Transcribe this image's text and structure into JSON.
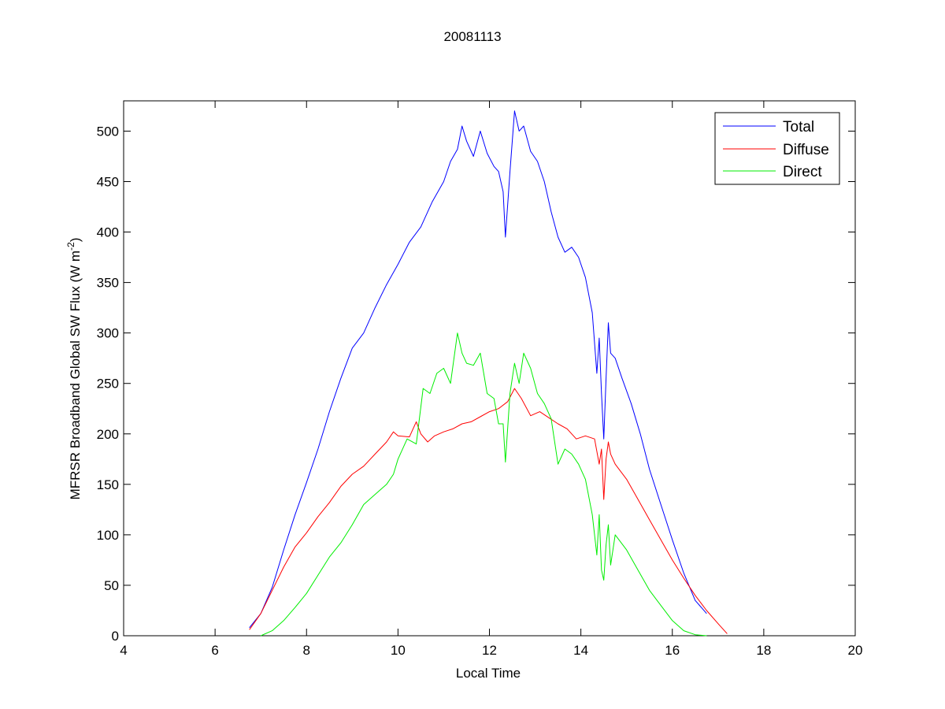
{
  "chart_data": {
    "type": "line",
    "title": "20081113",
    "xlabel": "Local Time",
    "ylabel_main": "MFRSR Broadband Global SW Flux (W m",
    "ylabel_sup": "-2",
    "ylabel_close": ")",
    "xlim": [
      4,
      20
    ],
    "ylim": [
      0,
      530
    ],
    "xticks": [
      4,
      6,
      8,
      10,
      12,
      14,
      16,
      18,
      20
    ],
    "yticks": [
      0,
      50,
      100,
      150,
      200,
      250,
      300,
      350,
      400,
      450,
      500
    ],
    "xtick_labels": [
      "4",
      "6",
      "8",
      "10",
      "12",
      "14",
      "16",
      "18",
      "20"
    ],
    "ytick_labels": [
      "0",
      "50",
      "100",
      "150",
      "200",
      "250",
      "300",
      "350",
      "400",
      "450",
      "500"
    ],
    "grid": false,
    "legend_position": "top-right",
    "series": [
      {
        "name": "Total",
        "color": "#0000ff",
        "x": [
          6.75,
          7.0,
          7.25,
          7.5,
          7.75,
          8.0,
          8.25,
          8.5,
          8.75,
          9.0,
          9.25,
          9.5,
          9.75,
          10.0,
          10.25,
          10.5,
          10.75,
          11.0,
          11.15,
          11.3,
          11.4,
          11.5,
          11.65,
          11.8,
          11.95,
          12.1,
          12.2,
          12.3,
          12.35,
          12.45,
          12.55,
          12.65,
          12.75,
          12.9,
          13.05,
          13.2,
          13.35,
          13.5,
          13.65,
          13.8,
          13.95,
          14.1,
          14.25,
          14.35,
          14.4,
          14.45,
          14.5,
          14.55,
          14.6,
          14.65,
          14.75,
          14.9,
          15.1,
          15.3,
          15.5,
          15.75,
          16.0,
          16.25,
          16.5,
          16.75
        ],
        "y": [
          8,
          22,
          48,
          85,
          120,
          152,
          185,
          222,
          255,
          285,
          300,
          325,
          348,
          368,
          390,
          405,
          430,
          450,
          470,
          482,
          505,
          490,
          475,
          500,
          478,
          465,
          460,
          440,
          395,
          460,
          520,
          500,
          505,
          480,
          470,
          450,
          420,
          395,
          380,
          385,
          375,
          355,
          320,
          260,
          295,
          240,
          195,
          255,
          310,
          280,
          275,
          255,
          230,
          200,
          165,
          130,
          95,
          62,
          35,
          22
        ]
      },
      {
        "name": "Diffuse",
        "color": "#ff0000",
        "x": [
          6.75,
          7.0,
          7.25,
          7.5,
          7.75,
          8.0,
          8.25,
          8.5,
          8.75,
          9.0,
          9.25,
          9.5,
          9.75,
          9.9,
          10.0,
          10.25,
          10.4,
          10.5,
          10.65,
          10.8,
          11.0,
          11.2,
          11.4,
          11.6,
          11.8,
          12.0,
          12.2,
          12.4,
          12.55,
          12.7,
          12.9,
          13.1,
          13.3,
          13.5,
          13.7,
          13.9,
          14.1,
          14.3,
          14.4,
          14.45,
          14.5,
          14.55,
          14.6,
          14.65,
          14.75,
          15.0,
          15.25,
          15.5,
          15.75,
          16.0,
          16.25,
          16.5,
          16.75,
          17.0,
          17.2
        ],
        "y": [
          6,
          22,
          45,
          68,
          88,
          102,
          118,
          132,
          148,
          160,
          168,
          180,
          192,
          202,
          198,
          197,
          212,
          200,
          192,
          198,
          202,
          205,
          210,
          212,
          217,
          222,
          225,
          232,
          245,
          235,
          218,
          222,
          216,
          210,
          205,
          195,
          198,
          195,
          170,
          185,
          135,
          175,
          192,
          180,
          170,
          155,
          135,
          115,
          95,
          75,
          57,
          40,
          25,
          12,
          2
        ]
      },
      {
        "name": "Direct",
        "color": "#00ee00",
        "x": [
          7.0,
          7.25,
          7.5,
          7.75,
          8.0,
          8.25,
          8.5,
          8.75,
          9.0,
          9.25,
          9.5,
          9.75,
          9.9,
          10.0,
          10.2,
          10.4,
          10.55,
          10.7,
          10.85,
          11.0,
          11.15,
          11.3,
          11.4,
          11.5,
          11.65,
          11.8,
          11.95,
          12.1,
          12.2,
          12.3,
          12.35,
          12.45,
          12.55,
          12.65,
          12.75,
          12.9,
          13.05,
          13.2,
          13.35,
          13.5,
          13.65,
          13.8,
          13.95,
          14.1,
          14.25,
          14.35,
          14.4,
          14.45,
          14.5,
          14.55,
          14.6,
          14.65,
          14.75,
          15.0,
          15.25,
          15.5,
          15.75,
          16.0,
          16.25,
          16.5,
          16.75
        ],
        "y": [
          0,
          5,
          15,
          28,
          42,
          60,
          78,
          92,
          110,
          130,
          140,
          150,
          160,
          175,
          195,
          190,
          245,
          240,
          260,
          265,
          250,
          300,
          280,
          270,
          268,
          280,
          240,
          235,
          210,
          210,
          172,
          240,
          270,
          250,
          280,
          265,
          240,
          230,
          215,
          170,
          185,
          180,
          170,
          155,
          120,
          80,
          120,
          65,
          55,
          90,
          110,
          70,
          100,
          85,
          65,
          45,
          30,
          15,
          5,
          1,
          0
        ]
      }
    ]
  }
}
